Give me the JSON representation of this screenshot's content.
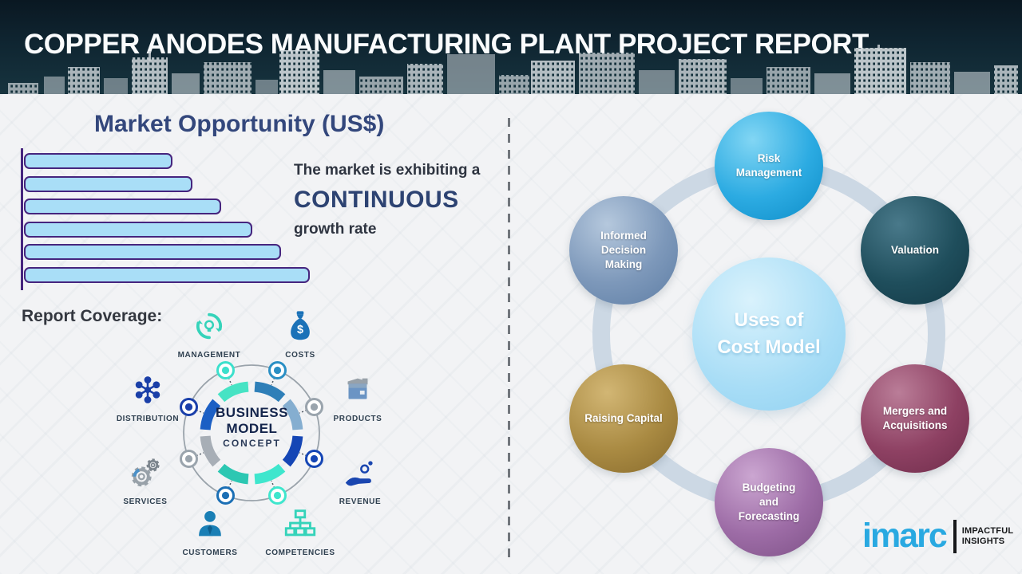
{
  "header": {
    "title": "COPPER ANODES MANUFACTURING PLANT PROJECT REPORT"
  },
  "market": {
    "title": "Market Opportunity (US$)",
    "line1": "The market is exhibiting a",
    "line2": "CONTINUOUS",
    "line3": "growth rate"
  },
  "chart_data": {
    "type": "bar",
    "orientation": "horizontal",
    "title": "Market Opportunity (US$)",
    "values": [
      52,
      59,
      69,
      80,
      90,
      100
    ],
    "value_note": "relative bar lengths in percent, estimated; no axis tick labels shown",
    "xlabel": "",
    "ylabel": "",
    "bar_fill": "#a9def7",
    "bar_stroke": "#46257e",
    "grid": false,
    "legend": false
  },
  "report_coverage_label": "Report Coverage:",
  "business_model": {
    "center_line1": "BUSINESS",
    "center_line2": "MODEL",
    "center_line3": "CONCEPT",
    "items": [
      {
        "label": "MANAGEMENT",
        "icon": "management-cycle-icon",
        "color": "#35d3ba"
      },
      {
        "label": "COSTS",
        "icon": "money-bag-icon",
        "color": "#1b72b8"
      },
      {
        "label": "DISTRIBUTION",
        "icon": "network-icon",
        "color": "#1a3fa8"
      },
      {
        "label": "PRODUCTS",
        "icon": "box-icon",
        "color": "#8a939b"
      },
      {
        "label": "SERVICES",
        "icon": "gears-icon",
        "color": "#98a1a9"
      },
      {
        "label": "REVENUE",
        "icon": "hand-coins-icon",
        "color": "#1a46b0"
      },
      {
        "label": "CUSTOMERS",
        "icon": "person-icon",
        "color": "#1a7fb5"
      },
      {
        "label": "COMPETENCIES",
        "icon": "org-chart-icon",
        "color": "#35d3ba"
      }
    ],
    "ring_segment_colors": [
      "#2e7fb8",
      "#85aed0",
      "#1546b5",
      "#3fe6cd",
      "#2cc7b2",
      "#a7aeb6",
      "#1b5fc4",
      "#46e3c4"
    ],
    "node_colors": [
      "#2a8fc4",
      "#9aa4ad",
      "#1546b5",
      "#3fe6cd",
      "#1b6fb5",
      "#9aa4ad",
      "#1a3faa",
      "#3ce0cc"
    ]
  },
  "cost_model": {
    "center_line1": "Uses of",
    "center_line2": "Cost Model",
    "satellites": [
      {
        "label": "Risk Management",
        "color": "#2cabe2"
      },
      {
        "label": "Valuation",
        "color": "#1f4e5c"
      },
      {
        "label": "Mergers and Acquisitions",
        "color": "#8e4163"
      },
      {
        "label": "Budgeting and Forecasting",
        "color": "#9d6ca6"
      },
      {
        "label": "Raising Capital",
        "color": "#a98a42"
      },
      {
        "label": "Informed Decision Making",
        "color": "#7d98ba"
      }
    ],
    "connector_ring_color": "#ccd8e4"
  },
  "logo": {
    "brand": "imarc",
    "tagline_line1": "IMPACTFUL",
    "tagline_line2": "INSIGHTS"
  }
}
